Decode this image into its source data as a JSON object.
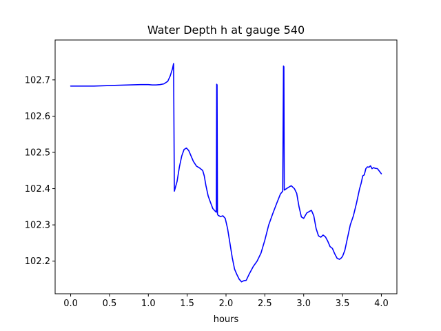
{
  "chart_data": {
    "type": "line",
    "title": "Water Depth h at gauge 540",
    "xlabel": "hours",
    "ylabel": "",
    "xlim": [
      -0.2,
      4.2
    ],
    "ylim": [
      102.11,
      102.81
    ],
    "xticks": [
      0.0,
      0.5,
      1.0,
      1.5,
      2.0,
      2.5,
      3.0,
      3.5,
      4.0
    ],
    "xtick_labels": [
      "0.0",
      "0.5",
      "1.0",
      "1.5",
      "2.0",
      "2.5",
      "3.0",
      "3.5",
      "4.0"
    ],
    "yticks": [
      102.2,
      102.3,
      102.4,
      102.5,
      102.6,
      102.7
    ],
    "ytick_labels": [
      "102.2",
      "102.3",
      "102.4",
      "102.5",
      "102.6",
      "102.7"
    ],
    "grid": false,
    "series": [
      {
        "color": "#0000ff",
        "x": [
          0.0,
          0.3,
          0.6,
          0.9,
          1.0,
          1.05,
          1.1,
          1.15,
          1.2,
          1.25,
          1.28,
          1.31,
          1.325,
          1.33,
          1.335,
          1.37,
          1.4,
          1.43,
          1.46,
          1.49,
          1.52,
          1.55,
          1.58,
          1.62,
          1.66,
          1.7,
          1.72,
          1.74,
          1.77,
          1.8,
          1.83,
          1.86,
          1.875,
          1.88,
          1.885,
          1.89,
          1.9,
          1.93,
          1.96,
          1.99,
          2.02,
          2.05,
          2.08,
          2.11,
          2.14,
          2.17,
          2.2,
          2.23,
          2.26,
          2.3,
          2.35,
          2.4,
          2.45,
          2.5,
          2.55,
          2.6,
          2.65,
          2.7,
          2.73,
          2.74,
          2.745,
          2.75,
          2.8,
          2.84,
          2.88,
          2.91,
          2.94,
          2.97,
          3.0,
          3.04,
          3.08,
          3.1,
          3.13,
          3.16,
          3.19,
          3.22,
          3.25,
          3.28,
          3.31,
          3.34,
          3.37,
          3.4,
          3.43,
          3.46,
          3.48,
          3.5,
          3.53,
          3.56,
          3.6,
          3.64,
          3.68,
          3.72,
          3.74,
          3.76,
          3.78,
          3.8,
          3.82,
          3.84,
          3.86,
          3.88,
          3.9,
          3.92,
          3.95,
          4.0
        ],
        "y": [
          102.683,
          102.683,
          102.685,
          102.687,
          102.687,
          102.686,
          102.686,
          102.687,
          102.689,
          102.696,
          102.71,
          102.73,
          102.745,
          102.57,
          102.393,
          102.42,
          102.46,
          102.49,
          102.508,
          102.512,
          102.505,
          102.49,
          102.475,
          102.462,
          102.457,
          102.45,
          102.435,
          102.41,
          102.38,
          102.362,
          102.345,
          102.338,
          102.335,
          102.688,
          102.686,
          102.33,
          102.326,
          102.323,
          102.325,
          102.318,
          102.29,
          102.25,
          102.21,
          102.178,
          102.163,
          102.15,
          102.143,
          102.146,
          102.147,
          102.165,
          102.185,
          102.2,
          102.222,
          102.258,
          102.3,
          102.33,
          102.358,
          102.385,
          102.393,
          102.738,
          102.736,
          102.396,
          102.403,
          102.408,
          102.4,
          102.387,
          102.35,
          102.322,
          102.318,
          102.333,
          102.338,
          102.34,
          102.325,
          102.29,
          102.27,
          102.266,
          102.272,
          102.267,
          102.255,
          102.24,
          102.235,
          102.22,
          102.208,
          102.205,
          102.208,
          102.213,
          102.23,
          102.26,
          102.3,
          102.325,
          102.36,
          102.4,
          102.415,
          102.435,
          102.438,
          102.455,
          102.46,
          102.459,
          102.463,
          102.455,
          102.458,
          102.456,
          102.455,
          102.441
        ]
      }
    ]
  }
}
